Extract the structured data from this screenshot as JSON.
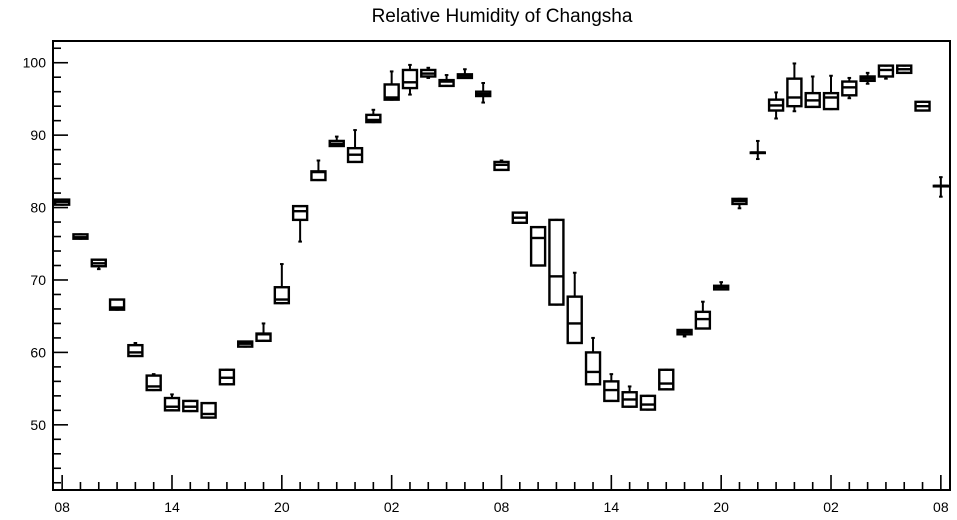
{
  "chart_data": {
    "type": "box",
    "title": "Relative Humidity of Changsha",
    "xlabel": "",
    "ylabel": "",
    "ylim": [
      41,
      103
    ],
    "xlim": [
      -0.5,
      48.5
    ],
    "yticks": [
      50,
      60,
      70,
      80,
      90,
      100
    ],
    "y_minor_step": 2,
    "x_ticks": [
      {
        "pos": 0,
        "label": "08"
      },
      {
        "pos": 6,
        "label": "14"
      },
      {
        "pos": 12,
        "label": "20"
      },
      {
        "pos": 18,
        "label": "02"
      },
      {
        "pos": 24,
        "label": "08"
      },
      {
        "pos": 30,
        "label": "14"
      },
      {
        "pos": 36,
        "label": "20"
      },
      {
        "pos": 42,
        "label": "02"
      },
      {
        "pos": 48,
        "label": "08"
      }
    ],
    "boxes": [
      {
        "x": 0,
        "min": 80.4,
        "q1": 80.4,
        "median": 80.8,
        "q3": 81.1,
        "max": 81.1
      },
      {
        "x": 1,
        "min": 75.7,
        "q1": 75.7,
        "median": 75.9,
        "q3": 76.3,
        "max": 76.3
      },
      {
        "x": 2,
        "min": 71.5,
        "q1": 71.9,
        "median": 72.3,
        "q3": 72.8,
        "max": 72.8
      },
      {
        "x": 3,
        "min": 65.9,
        "q1": 65.9,
        "median": 66.2,
        "q3": 67.3,
        "max": 67.3
      },
      {
        "x": 4,
        "min": 59.5,
        "q1": 59.5,
        "median": 60.0,
        "q3": 61.0,
        "max": 61.3
      },
      {
        "x": 5,
        "min": 54.8,
        "q1": 54.8,
        "median": 55.3,
        "q3": 56.8,
        "max": 57.0
      },
      {
        "x": 6,
        "min": 52.0,
        "q1": 52.0,
        "median": 52.5,
        "q3": 53.7,
        "max": 54.2
      },
      {
        "x": 7,
        "min": 51.9,
        "q1": 51.9,
        "median": 52.5,
        "q3": 53.3,
        "max": 53.3
      },
      {
        "x": 8,
        "min": 51.0,
        "q1": 51.0,
        "median": 51.5,
        "q3": 53.0,
        "max": 53.0
      },
      {
        "x": 9,
        "min": 55.6,
        "q1": 55.6,
        "median": 56.5,
        "q3": 57.6,
        "max": 57.6
      },
      {
        "x": 10,
        "min": 60.8,
        "q1": 60.8,
        "median": 61.2,
        "q3": 61.5,
        "max": 61.5
      },
      {
        "x": 11,
        "min": 61.6,
        "q1": 61.6,
        "median": 62.5,
        "q3": 62.6,
        "max": 64.0
      },
      {
        "x": 12,
        "min": 66.8,
        "q1": 66.8,
        "median": 67.3,
        "q3": 69.0,
        "max": 72.2
      },
      {
        "x": 13,
        "min": 75.3,
        "q1": 78.3,
        "median": 79.5,
        "q3": 80.2,
        "max": 80.2
      },
      {
        "x": 14,
        "min": 83.8,
        "q1": 83.8,
        "median": 84.9,
        "q3": 85.0,
        "max": 86.5
      },
      {
        "x": 15,
        "min": 88.5,
        "q1": 88.5,
        "median": 88.8,
        "q3": 89.2,
        "max": 89.8
      },
      {
        "x": 16,
        "min": 86.3,
        "q1": 86.3,
        "median": 87.3,
        "q3": 88.2,
        "max": 90.7
      },
      {
        "x": 17,
        "min": 91.8,
        "q1": 91.8,
        "median": 92.1,
        "q3": 92.8,
        "max": 93.5
      },
      {
        "x": 18,
        "min": 94.9,
        "q1": 94.9,
        "median": 95.2,
        "q3": 97.0,
        "max": 98.8
      },
      {
        "x": 19,
        "min": 95.6,
        "q1": 96.5,
        "median": 97.3,
        "q3": 99.0,
        "max": 99.7
      },
      {
        "x": 20,
        "min": 97.9,
        "q1": 98.1,
        "median": 98.5,
        "q3": 99.0,
        "max": 99.3
      },
      {
        "x": 21,
        "min": 96.8,
        "q1": 96.8,
        "median": 97.4,
        "q3": 97.6,
        "max": 98.3
      },
      {
        "x": 22,
        "min": 97.9,
        "q1": 97.9,
        "median": 98.2,
        "q3": 98.4,
        "max": 99.1
      },
      {
        "x": 23,
        "min": 94.5,
        "q1": 95.4,
        "median": 95.7,
        "q3": 96.0,
        "max": 97.2
      },
      {
        "x": 24,
        "min": 85.2,
        "q1": 85.2,
        "median": 85.9,
        "q3": 86.3,
        "max": 86.5
      },
      {
        "x": 25,
        "min": 77.9,
        "q1": 77.9,
        "median": 78.6,
        "q3": 79.3,
        "max": 79.3
      },
      {
        "x": 26,
        "min": 72.0,
        "q1": 72.0,
        "median": 75.8,
        "q3": 77.3,
        "max": 77.3
      },
      {
        "x": 27,
        "min": 66.6,
        "q1": 66.6,
        "median": 70.5,
        "q3": 78.3,
        "max": 78.3
      },
      {
        "x": 28,
        "min": 61.3,
        "q1": 61.3,
        "median": 64.0,
        "q3": 67.7,
        "max": 71.0
      },
      {
        "x": 29,
        "min": 55.6,
        "q1": 55.6,
        "median": 57.3,
        "q3": 60.0,
        "max": 62.0
      },
      {
        "x": 30,
        "min": 53.3,
        "q1": 53.3,
        "median": 54.8,
        "q3": 56.0,
        "max": 57.0
      },
      {
        "x": 31,
        "min": 52.5,
        "q1": 52.5,
        "median": 53.5,
        "q3": 54.5,
        "max": 55.3
      },
      {
        "x": 32,
        "min": 52.1,
        "q1": 52.1,
        "median": 52.8,
        "q3": 54.0,
        "max": 54.0
      },
      {
        "x": 33,
        "min": 54.9,
        "q1": 54.9,
        "median": 55.7,
        "q3": 57.6,
        "max": 57.6
      },
      {
        "x": 34,
        "min": 62.2,
        "q1": 62.5,
        "median": 62.8,
        "q3": 63.1,
        "max": 63.1
      },
      {
        "x": 35,
        "min": 63.3,
        "q1": 63.3,
        "median": 64.6,
        "q3": 65.6,
        "max": 67.0
      },
      {
        "x": 36,
        "min": 68.7,
        "q1": 68.7,
        "median": 69.0,
        "q3": 69.2,
        "max": 69.7
      },
      {
        "x": 37,
        "min": 79.9,
        "q1": 80.5,
        "median": 80.9,
        "q3": 81.2,
        "max": 81.2
      },
      {
        "x": 38,
        "min": 86.7,
        "q1": 87.6,
        "median": 87.6,
        "q3": 87.6,
        "max": 89.2
      },
      {
        "x": 39,
        "min": 92.3,
        "q1": 93.4,
        "median": 94.1,
        "q3": 94.9,
        "max": 95.9
      },
      {
        "x": 40,
        "min": 93.3,
        "q1": 94.0,
        "median": 95.2,
        "q3": 97.8,
        "max": 99.9
      },
      {
        "x": 41,
        "min": 93.9,
        "q1": 93.9,
        "median": 94.8,
        "q3": 95.8,
        "max": 98.1
      },
      {
        "x": 42,
        "min": 93.6,
        "q1": 93.6,
        "median": 95.2,
        "q3": 95.8,
        "max": 98.2
      },
      {
        "x": 43,
        "min": 95.1,
        "q1": 95.5,
        "median": 96.6,
        "q3": 97.4,
        "max": 97.9
      },
      {
        "x": 44,
        "min": 97.1,
        "q1": 97.5,
        "median": 97.8,
        "q3": 98.1,
        "max": 98.6
      },
      {
        "x": 45,
        "min": 97.8,
        "q1": 98.1,
        "median": 99.0,
        "q3": 99.6,
        "max": 99.6
      },
      {
        "x": 46,
        "min": 98.6,
        "q1": 98.6,
        "median": 99.1,
        "q3": 99.6,
        "max": 99.6
      },
      {
        "x": 47,
        "min": 93.4,
        "q1": 93.4,
        "median": 94.0,
        "q3": 94.6,
        "max": 94.6
      },
      {
        "x": 48,
        "min": 81.5,
        "q1": 83.0,
        "median": 83.0,
        "q3": 83.0,
        "max": 84.2
      }
    ]
  }
}
